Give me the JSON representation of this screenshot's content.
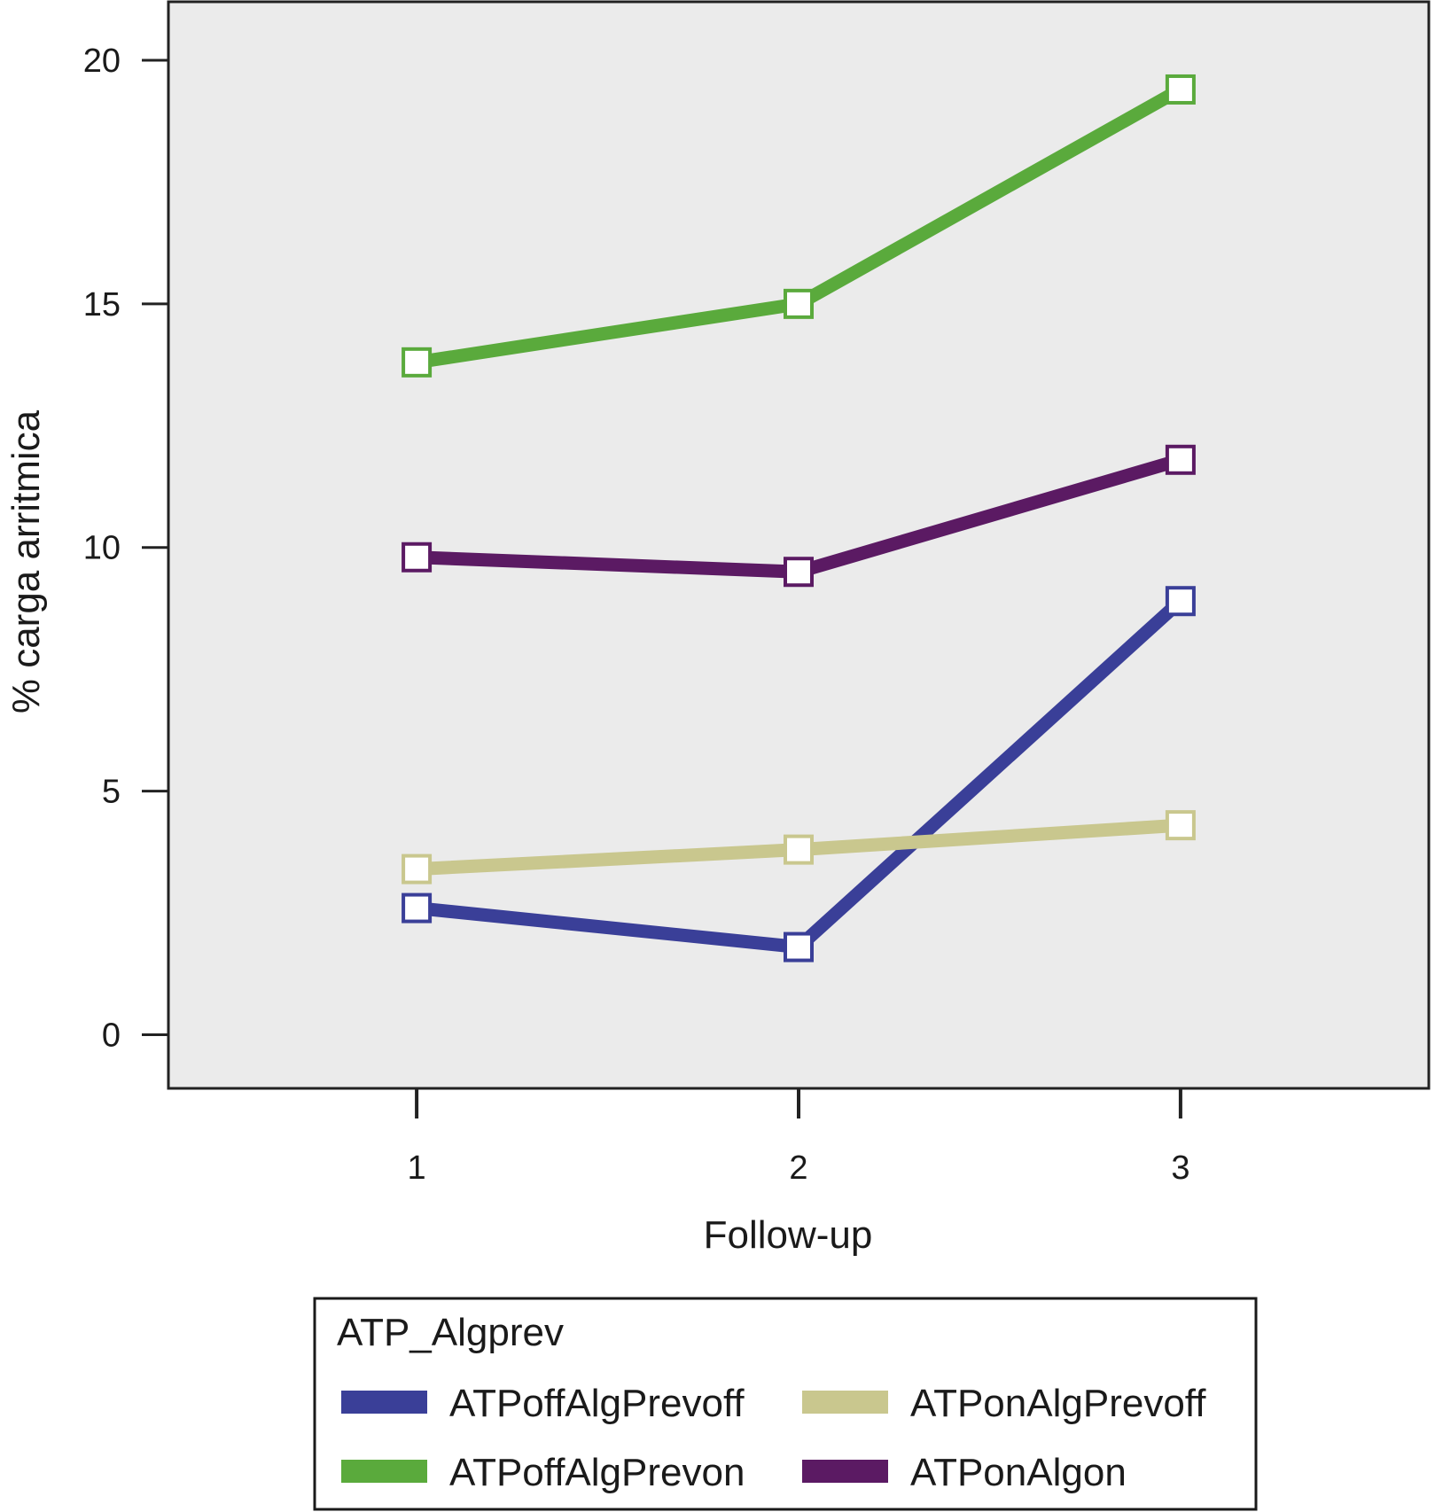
{
  "chart_data": {
    "type": "line",
    "title": "",
    "xlabel": "Follow-up",
    "ylabel": "% carga arritmica",
    "x": [
      1,
      2,
      3
    ],
    "x_tick_labels": [
      "1",
      "2",
      "3"
    ],
    "xlim": [
      0.35,
      3.65
    ],
    "ylim": [
      -1.1,
      21.2
    ],
    "y_ticks": [
      0,
      5,
      10,
      15,
      20
    ],
    "y_tick_labels": [
      "0",
      "5",
      "10",
      "15",
      "20"
    ],
    "grid": false,
    "plot_background": "#ebebeb",
    "marker": "square",
    "legend": {
      "title": "ATP_Algprev",
      "position": "bottom"
    },
    "series": [
      {
        "name": "ATPoffAlgPrevoff",
        "color": "#3a3f98",
        "values": [
          2.6,
          1.8,
          8.9
        ]
      },
      {
        "name": "ATPoffAlgPrevon",
        "color": "#5aaa3c",
        "values": [
          13.8,
          15.0,
          19.4
        ]
      },
      {
        "name": "ATPonAlgPrevoff",
        "color": "#c9c78e",
        "values": [
          3.4,
          3.8,
          4.3
        ]
      },
      {
        "name": "ATPonAlgon",
        "color": "#5b1a63",
        "values": [
          9.8,
          9.5,
          11.8
        ]
      }
    ]
  }
}
